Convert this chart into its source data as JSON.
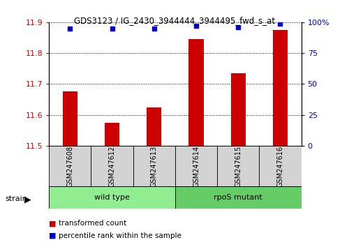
{
  "title": "GDS3123 / IG_2430_3944444_3944495_fwd_s_at",
  "samples": [
    "GSM247608",
    "GSM247612",
    "GSM247613",
    "GSM247614",
    "GSM247615",
    "GSM247616"
  ],
  "transformed_counts": [
    11.675,
    11.575,
    11.625,
    11.845,
    11.735,
    11.875
  ],
  "percentile_ranks": [
    95,
    95,
    95,
    97,
    96,
    99
  ],
  "bar_color": "#cc0000",
  "dot_color": "#0000cc",
  "ylim_left": [
    11.5,
    11.9
  ],
  "ylim_right": [
    0,
    100
  ],
  "yticks_left": [
    11.5,
    11.6,
    11.7,
    11.8,
    11.9
  ],
  "yticks_right": [
    0,
    25,
    50,
    75,
    100
  ],
  "groups": [
    {
      "label": "wild type",
      "color": "#90ee90",
      "size": 3
    },
    {
      "label": "rpoS mutant",
      "color": "#66cc66",
      "size": 3
    }
  ],
  "group_label": "strain",
  "legend_items": [
    {
      "label": "transformed count",
      "color": "#cc0000"
    },
    {
      "label": "percentile rank within the sample",
      "color": "#0000cc"
    }
  ],
  "bar_width": 0.35,
  "background_color": "#ffffff",
  "tick_label_color_left": "#cc0000",
  "tick_label_color_right": "#0000cc",
  "sample_box_color": "#d3d3d3"
}
